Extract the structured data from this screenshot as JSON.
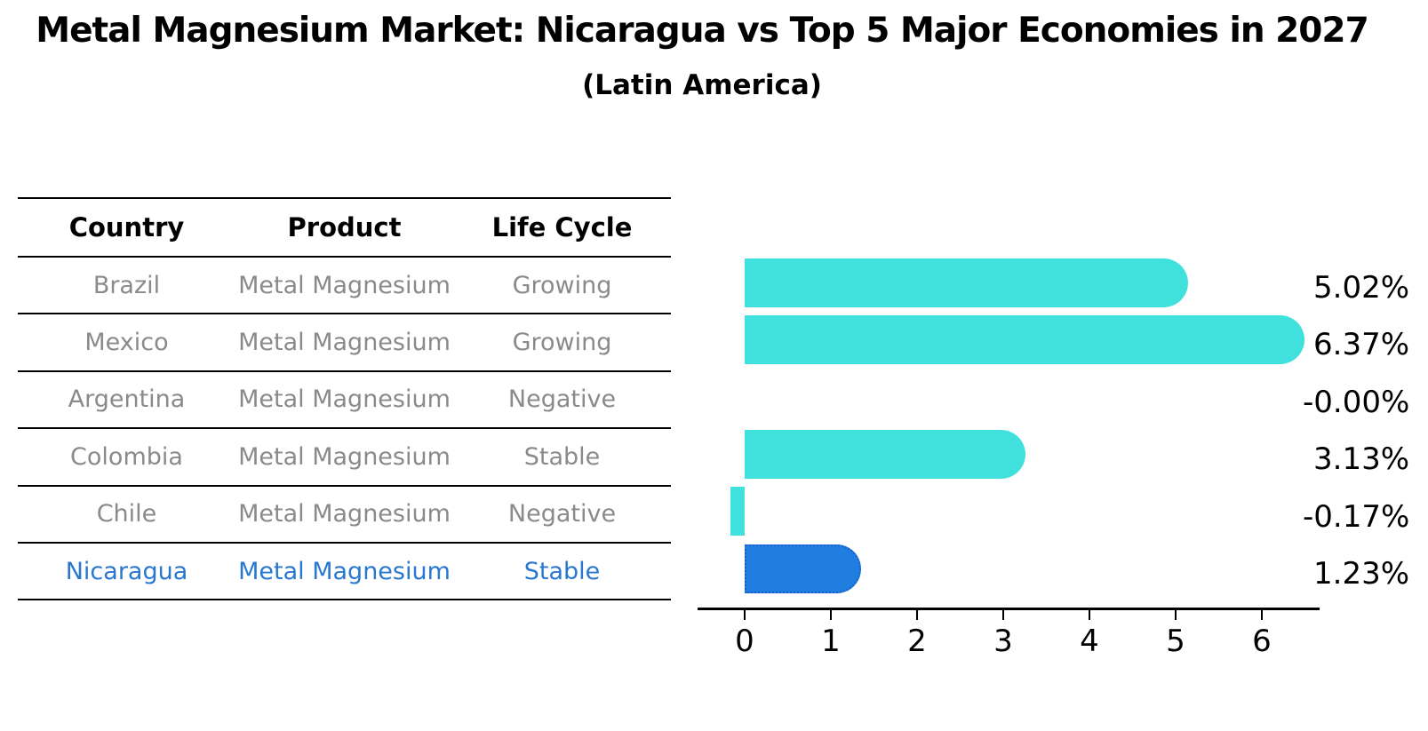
{
  "title": "Metal Magnesium Market: Nicaragua vs Top 5 Major Economies in 2027",
  "subtitle": "(Latin America)",
  "table": {
    "headers": [
      "Country",
      "Product",
      "Life Cycle"
    ],
    "rows": [
      {
        "country": "Brazil",
        "product": "Metal Magnesium",
        "life_cycle": "Growing",
        "highlight": false
      },
      {
        "country": "Mexico",
        "product": "Metal Magnesium",
        "life_cycle": "Growing",
        "highlight": false
      },
      {
        "country": "Argentina",
        "product": "Metal Magnesium",
        "life_cycle": "Negative",
        "highlight": false
      },
      {
        "country": "Colombia",
        "product": "Metal Magnesium",
        "life_cycle": "Stable",
        "highlight": false
      },
      {
        "country": "Chile",
        "product": "Metal Magnesium",
        "life_cycle": "Negative",
        "highlight": false
      },
      {
        "country": "Nicaragua",
        "product": "Metal Magnesium",
        "life_cycle": "Stable",
        "highlight": true
      }
    ]
  },
  "chart_data": {
    "type": "bar",
    "orientation": "horizontal",
    "title": "Metal Magnesium Market: Nicaragua vs Top 5 Major Economies in 2027",
    "subtitle": "(Latin America)",
    "categories": [
      "Brazil",
      "Mexico",
      "Argentina",
      "Colombia",
      "Chile",
      "Nicaragua"
    ],
    "values": [
      5.02,
      6.37,
      -0.0,
      3.13,
      -0.17,
      1.23
    ],
    "value_labels": [
      "5.02%",
      "6.37%",
      "-0.00%",
      "3.13%",
      "-0.17%",
      "1.23%"
    ],
    "x_ticks": [
      "0",
      "1",
      "2",
      "3",
      "4",
      "5",
      "6"
    ],
    "xlim": [
      -0.55,
      6.67
    ],
    "grid": false,
    "legend": false,
    "highlight_index": 5
  },
  "colors": {
    "bar_default": "#40E1DC",
    "bar_highlight": "#1F7EE0",
    "bar_highlight_border": "#1A5FC8",
    "highlight_text": "#2878D0",
    "body_text": "#8A8A8A",
    "heading_text": "#000000"
  }
}
